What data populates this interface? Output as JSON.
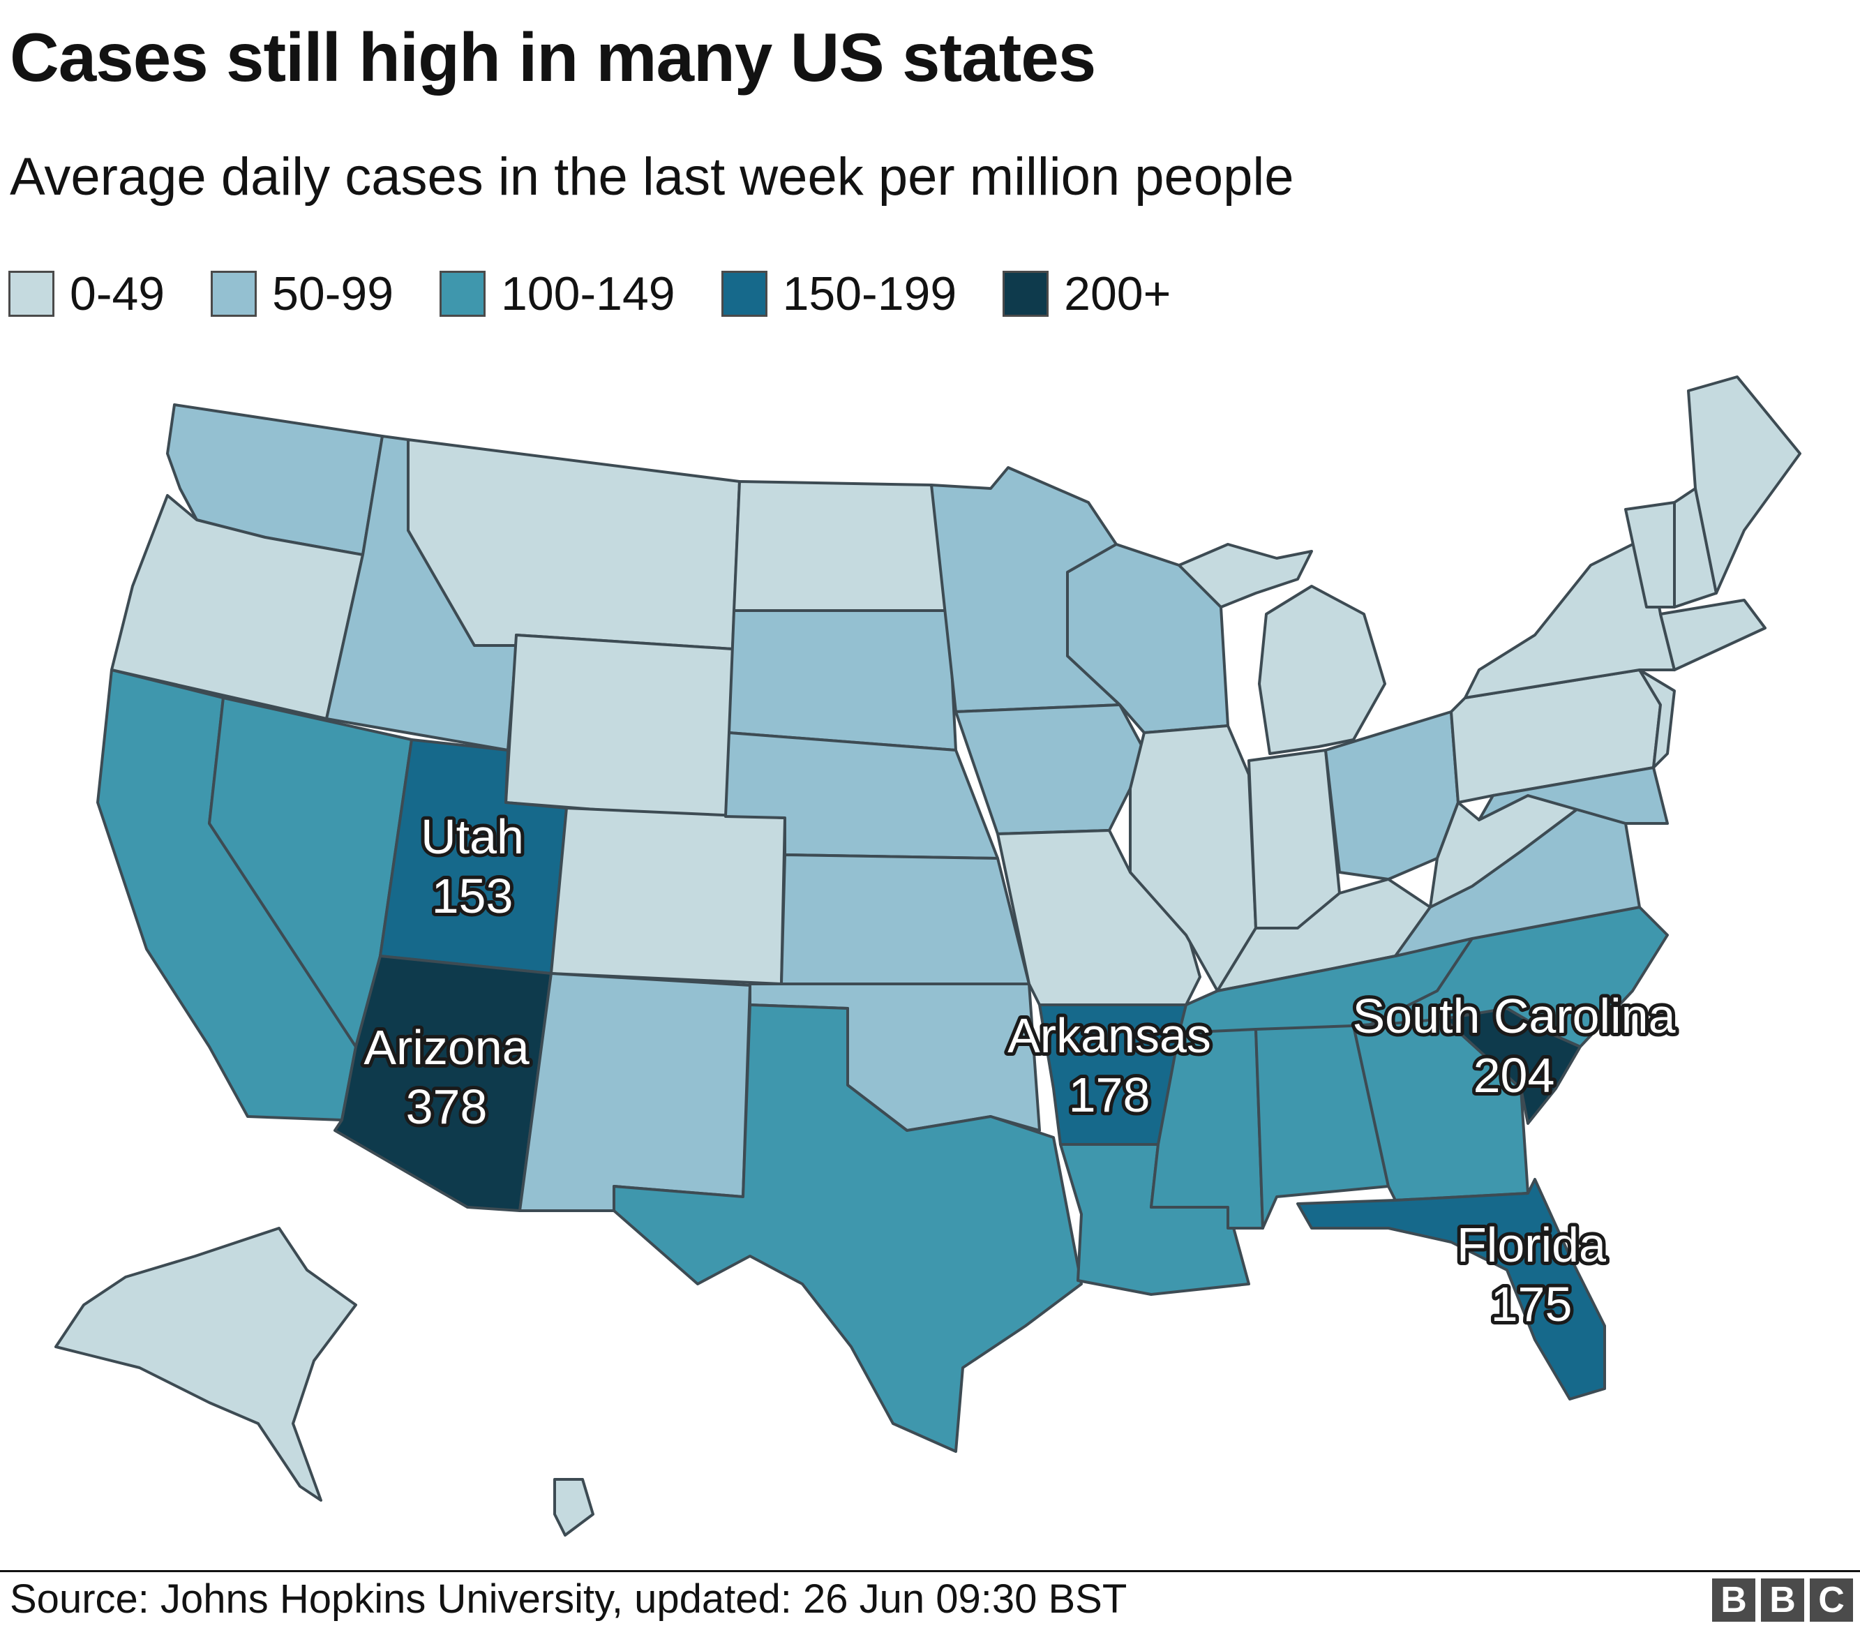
{
  "title": "Cases still high in many US states",
  "subtitle": "Average daily cases in the last week per million people",
  "legend": [
    {
      "label": "0-49",
      "color": "#c5dadf"
    },
    {
      "label": "50-99",
      "color": "#94c0d1"
    },
    {
      "label": "100-149",
      "color": "#3f97ad"
    },
    {
      "label": "150-199",
      "color": "#16698b"
    },
    {
      "label": "200+",
      "color": "#0e3a4c"
    }
  ],
  "highlighted_states": [
    {
      "name": "Utah",
      "value": "153"
    },
    {
      "name": "Arizona",
      "value": "378"
    },
    {
      "name": "Arkansas",
      "value": "178"
    },
    {
      "name": "South Carolina",
      "value": "204"
    },
    {
      "name": "Florida",
      "value": "175"
    }
  ],
  "footer": {
    "source": "Source: Johns Hopkins University, updated: 26 Jun 09:30 BST",
    "logo_letters": [
      "B",
      "B",
      "C"
    ]
  }
}
